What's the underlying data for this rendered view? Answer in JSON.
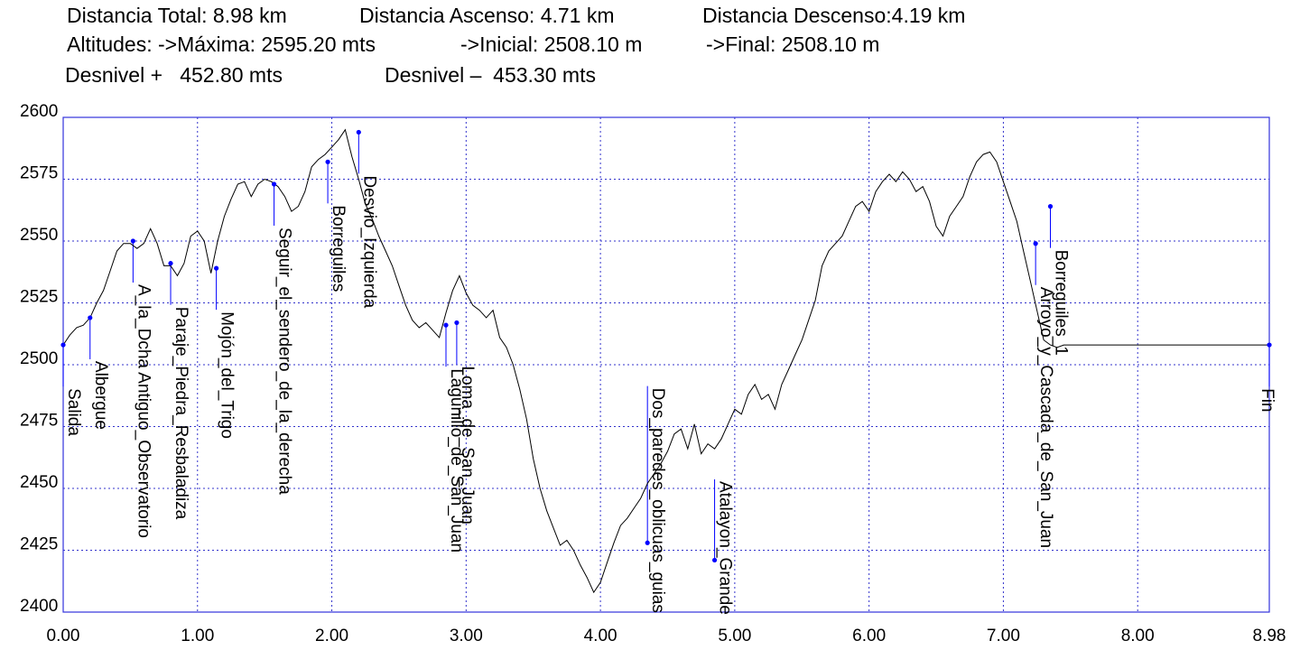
{
  "header": {
    "total": "Distancia Total: 8.98 km",
    "ascent": "Distancia Ascenso: 4.71 km",
    "descent": "Distancia Descenso:4.19 km",
    "alt_max": "Altitudes: ->Máxima: 2595.20 mts",
    "alt_initial": "->Inicial: 2508.10 m",
    "alt_final": "->Final: 2508.10 m",
    "desnivel_plus": "Desnivel +   452.80 mts",
    "desnivel_minus": "Desnivel –  453.30 mts"
  },
  "colors": {
    "frame": "#3333dd",
    "grid": "#3333cc",
    "profile": "#000000",
    "marker": "#0000ff",
    "leader": "#0000ff"
  },
  "chart_data": {
    "type": "line",
    "title": "",
    "xlabel": "",
    "ylabel": "",
    "xlim": [
      0,
      8.98
    ],
    "ylim": [
      2400,
      2600
    ],
    "grid": true,
    "x_ticks": [
      0,
      1,
      2,
      3,
      4,
      5,
      6,
      7,
      8,
      8.98
    ],
    "x_tick_labels": [
      "0.00",
      "1.00",
      "2.00",
      "3.00",
      "4.00",
      "5.00",
      "6.00",
      "7.00",
      "8.00",
      "8.98"
    ],
    "y_ticks": [
      2400,
      2425,
      2450,
      2475,
      2500,
      2525,
      2550,
      2575,
      2600
    ],
    "y_tick_labels": [
      "2400",
      "2425",
      "2450",
      "2475",
      "2500",
      "2525",
      "2550",
      "2575",
      "2600"
    ],
    "profile": {
      "x": [
        0.0,
        0.05,
        0.1,
        0.15,
        0.2,
        0.25,
        0.3,
        0.35,
        0.4,
        0.45,
        0.5,
        0.55,
        0.6,
        0.65,
        0.7,
        0.75,
        0.8,
        0.85,
        0.9,
        0.95,
        1.0,
        1.05,
        1.1,
        1.15,
        1.2,
        1.25,
        1.3,
        1.35,
        1.4,
        1.45,
        1.5,
        1.55,
        1.6,
        1.65,
        1.7,
        1.75,
        1.8,
        1.85,
        1.9,
        1.95,
        2.0,
        2.05,
        2.1,
        2.15,
        2.2,
        2.25,
        2.3,
        2.35,
        2.4,
        2.45,
        2.5,
        2.55,
        2.6,
        2.65,
        2.7,
        2.75,
        2.8,
        2.85,
        2.9,
        2.95,
        3.0,
        3.05,
        3.1,
        3.15,
        3.2,
        3.25,
        3.3,
        3.35,
        3.4,
        3.45,
        3.5,
        3.55,
        3.6,
        3.65,
        3.7,
        3.75,
        3.8,
        3.85,
        3.9,
        3.95,
        4.0,
        4.05,
        4.1,
        4.15,
        4.2,
        4.25,
        4.3,
        4.35,
        4.4,
        4.45,
        4.5,
        4.55,
        4.6,
        4.65,
        4.7,
        4.75,
        4.8,
        4.85,
        4.9,
        4.95,
        5.0,
        5.05,
        5.1,
        5.15,
        5.2,
        5.25,
        5.3,
        5.35,
        5.4,
        5.45,
        5.5,
        5.55,
        5.6,
        5.65,
        5.7,
        5.75,
        5.8,
        5.85,
        5.9,
        5.95,
        6.0,
        6.05,
        6.1,
        6.15,
        6.2,
        6.25,
        6.3,
        6.35,
        6.4,
        6.45,
        6.5,
        6.55,
        6.6,
        6.65,
        6.7,
        6.75,
        6.8,
        6.85,
        6.9,
        6.95,
        7.0,
        7.05,
        7.1,
        7.15,
        7.2,
        7.25,
        7.3,
        7.35,
        7.4,
        7.45,
        7.5,
        7.55,
        7.6,
        7.65,
        7.7,
        7.75,
        7.8,
        7.85,
        7.9,
        7.95,
        8.0,
        8.05,
        8.1,
        8.15,
        8.2,
        8.25,
        8.3,
        8.35,
        8.4,
        8.45,
        8.5,
        8.55,
        8.6,
        8.65,
        8.7,
        8.75,
        8.8,
        8.85,
        8.9,
        8.95,
        8.98
      ],
      "y": [
        2508,
        2512,
        2515,
        2516,
        2519,
        2525,
        2530,
        2538,
        2546,
        2549,
        2549,
        2547,
        2549,
        2555,
        2549,
        2540,
        2540,
        2536,
        2541,
        2552,
        2554,
        2550,
        2537,
        2550,
        2560,
        2567,
        2573,
        2574,
        2568,
        2573,
        2575,
        2574,
        2572,
        2568,
        2562,
        2564,
        2570,
        2580,
        2583,
        2585,
        2588,
        2591,
        2595,
        2584,
        2575,
        2565,
        2559,
        2552,
        2546,
        2540,
        2532,
        2524,
        2518,
        2515,
        2517,
        2514,
        2511,
        2521,
        2530,
        2536,
        2529,
        2524,
        2522,
        2519,
        2522,
        2511,
        2507,
        2500,
        2490,
        2478,
        2462,
        2450,
        2441,
        2434,
        2427,
        2429,
        2425,
        2419,
        2414,
        2408,
        2412,
        2420,
        2428,
        2435,
        2438,
        2442,
        2446,
        2452,
        2456,
        2460,
        2465,
        2472,
        2474,
        2466,
        2476,
        2464,
        2468,
        2466,
        2470,
        2476,
        2482,
        2480,
        2488,
        2492,
        2486,
        2488,
        2482,
        2492,
        2498,
        2504,
        2510,
        2518,
        2526,
        2540,
        2546,
        2549,
        2552,
        2558,
        2564,
        2566,
        2562,
        2570,
        2574,
        2577,
        2574,
        2578,
        2575,
        2570,
        2572,
        2566,
        2556,
        2552,
        2560,
        2564,
        2568,
        2576,
        2582,
        2585,
        2586,
        2582,
        2574,
        2566,
        2558,
        2546,
        2534,
        2522,
        2510,
        2508,
        2507,
        2508,
        2508,
        2508,
        2508,
        2508,
        2508,
        2508,
        2508,
        2508,
        2508,
        2508,
        2508,
        2508,
        2508,
        2508,
        2508,
        2508,
        2508,
        2508,
        2508,
        2508,
        2508,
        2508,
        2508,
        2508,
        2508,
        2508,
        2508,
        2508,
        2508,
        2508,
        2508
      ]
    },
    "waypoints": [
      {
        "name": "Salida",
        "x": 0.0,
        "y": 2508
      },
      {
        "name": "Albergue",
        "x": 0.2,
        "y": 2519
      },
      {
        "name": "A_la_Dcha Antiguo_Observatorio",
        "x": 0.52,
        "y": 2550
      },
      {
        "name": "Paraje_Piedra_Resbaladiza",
        "x": 0.8,
        "y": 2541
      },
      {
        "name": "Mojón_del_Trigo",
        "x": 1.14,
        "y": 2539
      },
      {
        "name": "Seguir_el_sendero_de_la_derecha",
        "x": 1.57,
        "y": 2573
      },
      {
        "name": "Borreguiles",
        "x": 1.97,
        "y": 2582
      },
      {
        "name": "Desvio_Izquierda",
        "x": 2.2,
        "y": 2594
      },
      {
        "name": "Lagunillo_de_San_Juan",
        "x": 2.85,
        "y": 2516
      },
      {
        "name": "Loma_de_San_Juan",
        "x": 2.93,
        "y": 2517
      },
      {
        "name": "Dos_paredes_oblicuas_guias",
        "x": 4.35,
        "y": 2428
      },
      {
        "name": "Atalayon_Grande",
        "x": 4.85,
        "y": 2421
      },
      {
        "name": "Arroyo_y_Cascada_de_San_Juan",
        "x": 7.24,
        "y": 2549
      },
      {
        "name": "Borreguiles_1",
        "x": 7.35,
        "y": 2564
      },
      {
        "name": "Fin",
        "x": 8.98,
        "y": 2508
      }
    ]
  }
}
